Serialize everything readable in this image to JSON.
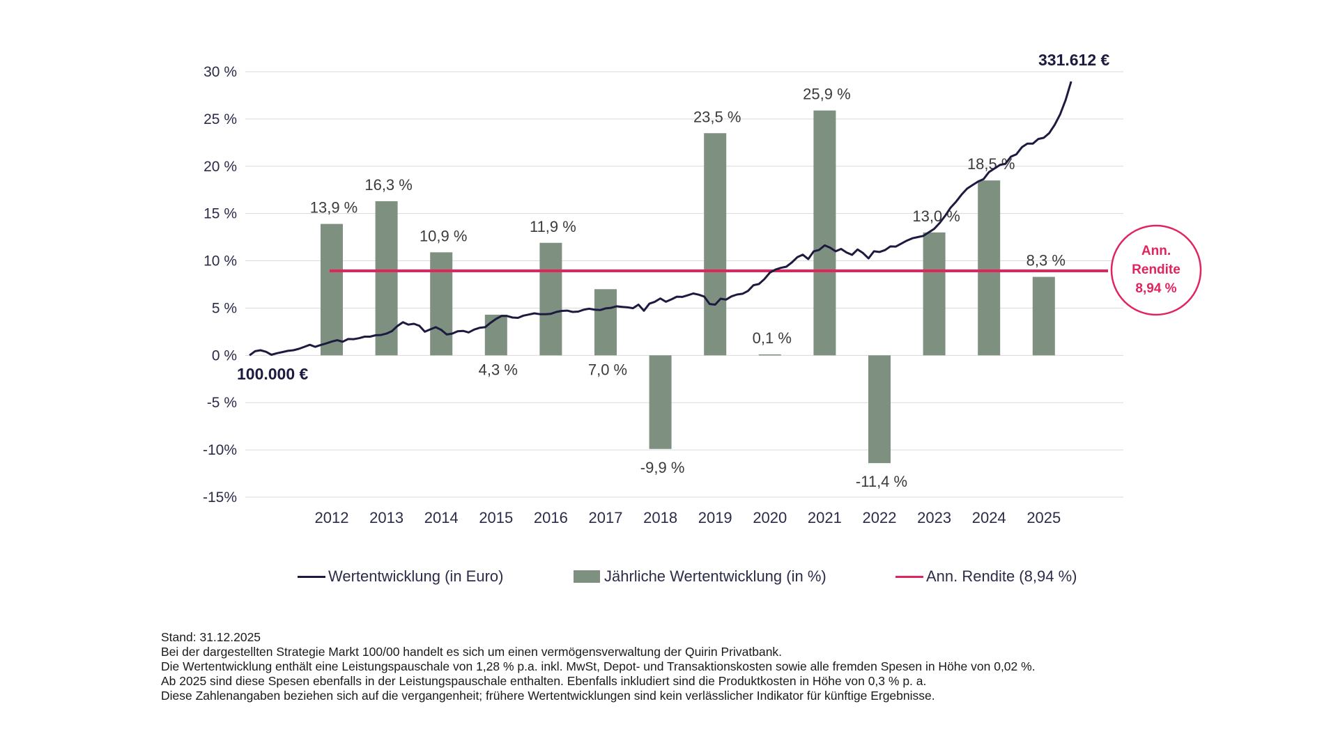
{
  "chart_data": {
    "type": "bar+line",
    "categories": [
      "2012",
      "2013",
      "2014",
      "2015",
      "2016",
      "2017",
      "2018",
      "2019",
      "2020",
      "2021",
      "2022",
      "2023",
      "2024",
      "2025"
    ],
    "y_ticks": [
      "30 %",
      "25 %",
      "20 %",
      "15 %",
      "10 %",
      "5 %",
      "0 %",
      "-5 %",
      "-10%",
      "-15%"
    ],
    "ylim": [
      -15,
      30
    ],
    "grid": true,
    "series": [
      {
        "name": "Jährliche Wertentwicklung (in %)",
        "kind": "bar",
        "color": "#7e9180",
        "values": [
          13.9,
          16.3,
          10.9,
          4.3,
          11.9,
          7.0,
          -9.9,
          23.5,
          0.1,
          25.9,
          -11.4,
          13.0,
          18.5,
          8.3
        ],
        "labels": [
          "13,9 %",
          "16,3 %",
          "10,9 %",
          "4,3 %",
          "11,9 %",
          "7,0 %",
          "-9,9 %",
          "23,5 %",
          "0,1 %",
          "25,9 %",
          "-11,4 %",
          "13,0 %",
          "18,5 %",
          "8,3 %"
        ]
      },
      {
        "name": "Wertentwicklung (in Euro)",
        "kind": "line",
        "color": "#1c1a3f",
        "start_label": "100.000 €",
        "end_label": "331.612 €",
        "x": [
          2011.0,
          2011.1,
          2011.2,
          2011.3,
          2011.4,
          2011.5,
          2011.6,
          2011.7,
          2011.8,
          2011.9,
          2012.0,
          2012.1,
          2012.2,
          2012.3,
          2012.4,
          2012.5,
          2012.6,
          2012.7,
          2012.8,
          2012.9,
          2013.0,
          2013.1,
          2013.2,
          2013.3,
          2013.4,
          2013.5,
          2013.6,
          2013.7,
          2013.8,
          2013.9,
          2014.0,
          2014.1,
          2014.2,
          2014.3,
          2014.4,
          2014.5,
          2014.6,
          2014.7,
          2014.8,
          2014.9,
          2015.0,
          2015.1,
          2015.2,
          2015.3,
          2015.4,
          2015.5,
          2015.6,
          2015.7,
          2015.8,
          2015.9,
          2016.0,
          2016.1,
          2016.2,
          2016.3,
          2016.4,
          2016.5,
          2016.6,
          2016.7,
          2016.8,
          2016.9,
          2017.0,
          2017.1,
          2017.2,
          2017.3,
          2017.4,
          2017.5,
          2017.6,
          2017.7,
          2017.8,
          2017.9,
          2018.0,
          2018.1,
          2018.2,
          2018.3,
          2018.4,
          2018.5,
          2018.6,
          2018.7,
          2018.8,
          2018.9,
          2019.0,
          2019.1,
          2019.2,
          2019.3,
          2019.4,
          2019.5,
          2019.6,
          2019.7,
          2019.8,
          2019.9,
          2020.0,
          2020.1,
          2020.2,
          2020.3,
          2020.4,
          2020.5,
          2020.6,
          2020.7,
          2020.8,
          2020.9,
          2021.0,
          2021.1,
          2021.2,
          2021.3,
          2021.4,
          2021.5,
          2021.6,
          2021.7,
          2021.8,
          2021.9,
          2022.0,
          2022.1,
          2022.2,
          2022.3,
          2022.4,
          2022.5,
          2022.6,
          2022.7,
          2022.8,
          2022.9,
          2023.0,
          2023.1,
          2023.2,
          2023.3,
          2023.4,
          2023.5,
          2023.6,
          2023.7,
          2023.8,
          2023.9,
          2024.0,
          2024.1,
          2024.2,
          2024.3,
          2024.4,
          2024.5,
          2024.6,
          2024.7,
          2024.8,
          2024.9,
          2025.0,
          2025.1,
          2025.2,
          2025.3,
          2025.4,
          2025.5,
          2025.6,
          2025.7,
          2025.8,
          2025.9,
          2026.0
        ],
        "y": [
          100000,
          103500,
          104300,
          103000,
          100500,
          101800,
          102800,
          103800,
          104300,
          105500,
          107200,
          108900,
          107200,
          108800,
          110100,
          111600,
          112800,
          111500,
          113800,
          113700,
          114500,
          115800,
          115800,
          117000,
          117200,
          118400,
          120500,
          124800,
          128000,
          126000,
          126700,
          125000,
          120000,
          122000,
          123800,
          121500,
          117600,
          118400,
          120400,
          120700,
          119400,
          121800,
          123300,
          123800,
          127500,
          130800,
          133300,
          133300,
          132000,
          131700,
          133600,
          134500,
          135500,
          134800,
          134800,
          135100,
          136700,
          137600,
          137800,
          136700,
          137000,
          138600,
          139400,
          138600,
          138300,
          139700,
          140200,
          141500,
          141000,
          140600,
          139900,
          142900,
          137700,
          143700,
          145300,
          148100,
          145300,
          147300,
          149600,
          149400,
          150800,
          152300,
          151300,
          149700,
          143400,
          142900,
          147900,
          147100,
          149900,
          151400,
          152100,
          154500,
          159300,
          160300,
          164500,
          170000,
          172500,
          174000,
          175000,
          178500,
          183000,
          185100,
          181400,
          188000,
          189200,
          193000,
          191000,
          188000,
          190000,
          187000,
          185000,
          189500,
          186500,
          182000,
          188000,
          187400,
          189000,
          192100,
          192000,
          194500,
          197000,
          199000,
          200000,
          201000,
          204000,
          207000,
          212000,
          218000,
          225000,
          230000,
          236000,
          241000,
          244000,
          247000,
          249000,
          255000,
          258000,
          261000,
          262000,
          268000,
          270000,
          276000,
          279000,
          279000,
          283000,
          284000,
          288000,
          295000,
          304000,
          316000,
          331612
        ]
      },
      {
        "name": "Ann. Rendite (8,94 %)",
        "kind": "hline",
        "color": "#e0245e",
        "value": 8.94
      }
    ],
    "annotation": {
      "lines": [
        "Ann.",
        "Rendite",
        "8,94 %"
      ]
    }
  },
  "legend": {
    "line": "Wertentwicklung (in Euro)",
    "bar": "Jährliche Wertentwicklung (in %)",
    "hline": "Ann. Rendite (8,94 %)"
  },
  "notes": [
    "Stand: 31.12.2025",
    "Bei der dargestellten Strategie Markt 100/00 handelt es sich um einen vermögensverwaltung der Quirin Privatbank.",
    "Die Wertentwicklung enthält eine Leistungspauschale von 1,28 % p.a. inkl. MwSt, Depot- und Transaktionskosten sowie alle fremden Spesen in Höhe von 0,02 %.",
    "Ab 2025 sind diese Spesen ebenfalls in der Leistungspauschale enthalten. Ebenfalls inkludiert sind die Produktkosten in Höhe von 0,3 % p. a.",
    "Diese Zahlenangaben beziehen sich auf die vergangenheit; frühere Wertentwicklungen sind kein verlässlicher Indikator für künftige Ergebnisse."
  ]
}
